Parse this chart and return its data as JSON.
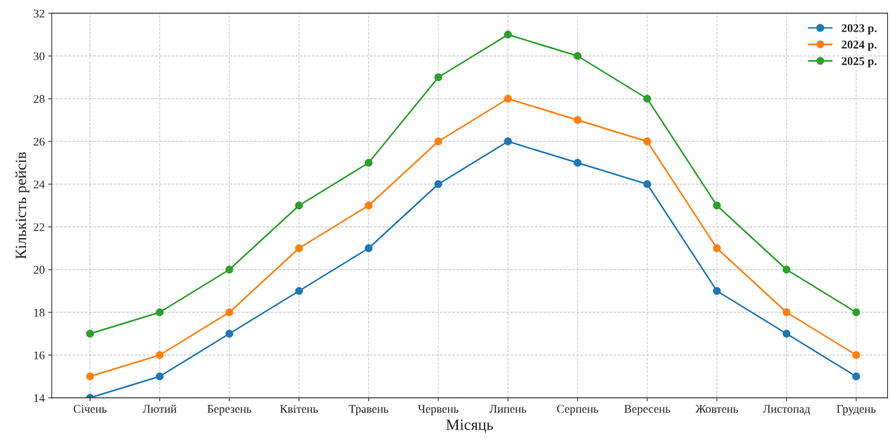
{
  "chart_data": {
    "type": "line",
    "xlabel": "Місяць",
    "ylabel": "Кількість рейсів",
    "categories": [
      "Січень",
      "Лютий",
      "Березень",
      "Квітень",
      "Травень",
      "Червень",
      "Липень",
      "Серпень",
      "Вересень",
      "Жовтень",
      "Листопад",
      "Грудень"
    ],
    "series": [
      {
        "name": "2023 р.",
        "color": "#1f77b4",
        "values": [
          14,
          15,
          17,
          19,
          21,
          24,
          26,
          25,
          24,
          19,
          17,
          15
        ]
      },
      {
        "name": "2024 р.",
        "color": "#ff7f0e",
        "values": [
          15,
          16,
          18,
          21,
          23,
          26,
          28,
          27,
          26,
          21,
          18,
          16
        ]
      },
      {
        "name": "2025 р.",
        "color": "#2ca02c",
        "values": [
          17,
          18,
          20,
          23,
          25,
          29,
          31,
          30,
          28,
          23,
          20,
          18
        ]
      }
    ],
    "ylim": [
      14,
      32
    ],
    "yticks": [
      14,
      16,
      18,
      20,
      22,
      24,
      26,
      28,
      30,
      32
    ],
    "grid": true,
    "legend": "top right",
    "marker": "circle",
    "line_style": "solid"
  }
}
